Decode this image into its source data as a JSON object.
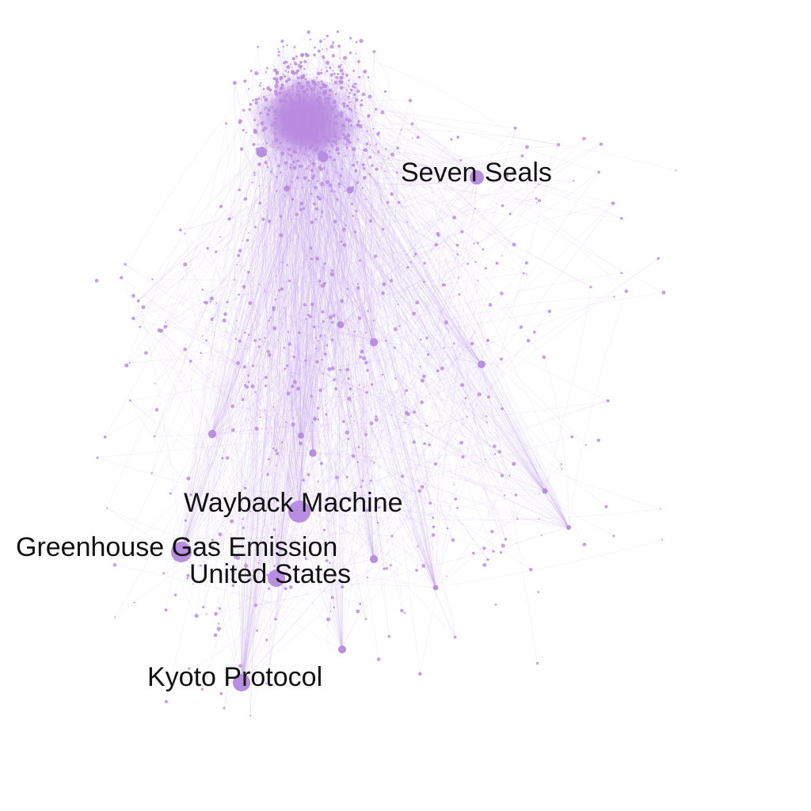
{
  "colors": {
    "background": "#ffffff",
    "node": "#b88ee0",
    "edge": "#c9a8ec",
    "label": "#111111"
  },
  "labels": {
    "seven_seals": "Seven Seals",
    "wayback_machine": "Wayback Machine",
    "greenhouse_gas_emission": "Greenhouse Gas Emission",
    "united_states": "United States",
    "kyoto_protocol": "Kyoto Protocol"
  }
}
